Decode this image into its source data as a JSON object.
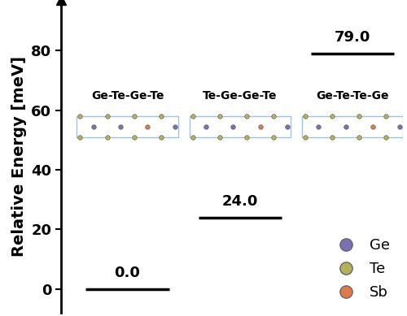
{
  "chart_data": {
    "type": "level",
    "ylabel": "Relative Energy [meV]",
    "categories": [
      "Ge-Te-Ge-Te",
      "Te-Ge-Ge-Te",
      "Ge-Te-Te-Ge"
    ],
    "values": [
      0.0,
      24.0,
      79.0
    ],
    "value_labels": [
      "0.0",
      "24.0",
      "79.0"
    ],
    "color": "#000000",
    "data_labels": true,
    "ylim": [
      -8,
      97
    ],
    "yticks": [
      0,
      20,
      40,
      60,
      80
    ],
    "tick_labels": "y",
    "species": [
      {
        "name": "Ge",
        "color": "#7b6fb5"
      },
      {
        "name": "Te",
        "color": "#b5b05a"
      },
      {
        "name": "Sb",
        "color": "#e07a4a"
      }
    ],
    "legend": "lower right"
  }
}
